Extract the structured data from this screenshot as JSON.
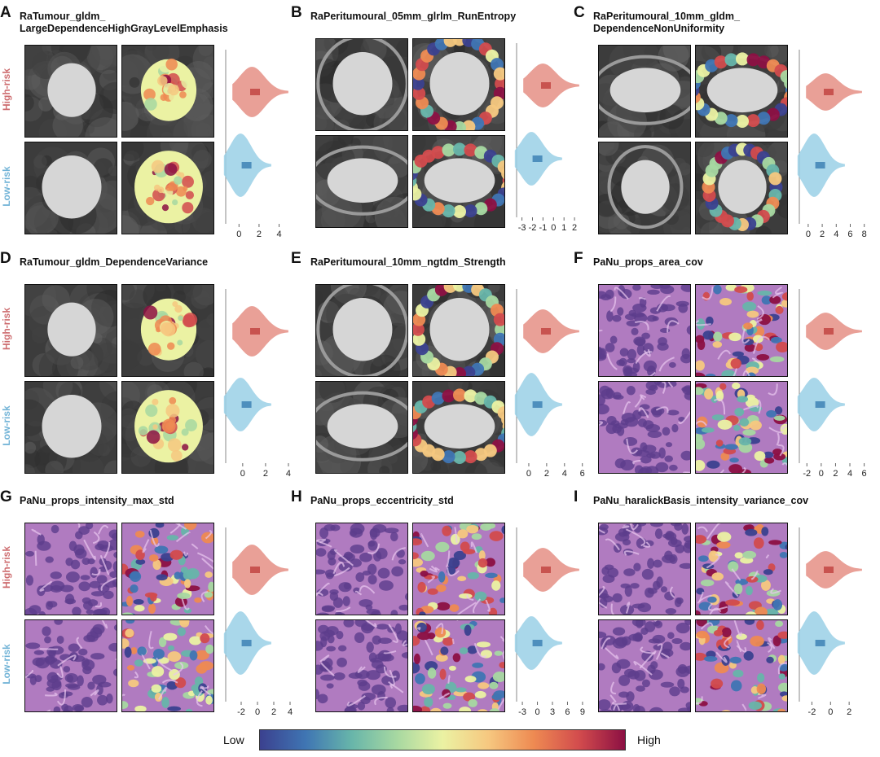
{
  "colors": {
    "high_risk": "#cd6b6e",
    "low_risk": "#6fb2d6",
    "violin_high": "#e58f85",
    "violin_low": "#9ad0e6"
  },
  "labels": {
    "high_risk": "High-risk",
    "low_risk": "Low-risk"
  },
  "colorbar": {
    "low": "Low",
    "high": "High"
  },
  "panels": [
    {
      "letter": "A",
      "title": "RaTumour_gldm_\nLargeDependenceHighGrayLevelEmphasis",
      "modality": "ct",
      "show_row_labels": true,
      "xticks": [
        "0",
        "2",
        "4"
      ],
      "xlim": [
        -1,
        5.5
      ]
    },
    {
      "letter": "B",
      "title": "RaPeritumoural_05mm_glrlm_RunEntropy",
      "modality": "ct",
      "show_row_labels": false,
      "xticks": [
        "-3",
        "-2",
        "-1",
        "0",
        "1",
        "2"
      ],
      "xlim": [
        -3.2,
        3
      ]
    },
    {
      "letter": "C",
      "title": "RaPeritumoural_10mm_gldm_\nDependenceNonUniformity",
      "modality": "ct",
      "show_row_labels": false,
      "xticks": [
        "0",
        "2",
        "4",
        "6",
        "8"
      ],
      "xlim": [
        -0.8,
        8.5
      ]
    },
    {
      "letter": "D",
      "title": "RaTumour_gldm_DependenceVariance",
      "modality": "ct",
      "show_row_labels": true,
      "xticks": [
        "0",
        "2",
        "4"
      ],
      "xlim": [
        -1.2,
        4.5
      ]
    },
    {
      "letter": "E",
      "title": "RaPeritumoural_10mm_ngtdm_Strength",
      "modality": "ct",
      "show_row_labels": false,
      "xticks": [
        "0",
        "2",
        "4",
        "6"
      ],
      "xlim": [
        -1,
        6.3
      ]
    },
    {
      "letter": "F",
      "title": "PaNu_props_area_cov",
      "modality": "he",
      "show_row_labels": false,
      "xticks": [
        "-2",
        "0",
        "2",
        "4",
        "6"
      ],
      "xlim": [
        -2.6,
        6.5
      ]
    },
    {
      "letter": "G",
      "title": "PaNu_props_intensity_max_std",
      "modality": "he",
      "show_row_labels": true,
      "xticks": [
        "-2",
        "0",
        "2",
        "4"
      ],
      "xlim": [
        -3.5,
        4.5
      ]
    },
    {
      "letter": "H",
      "title": "PaNu_props_eccentricity_std",
      "modality": "he",
      "show_row_labels": false,
      "xticks": [
        "-3",
        "0",
        "3",
        "6",
        "9"
      ],
      "xlim": [
        -3.5,
        9.5
      ]
    },
    {
      "letter": "I",
      "title": "PaNu_haralickBasis_intensity_variance_cov",
      "modality": "he",
      "show_row_labels": false,
      "xticks": [
        "-2",
        "0",
        "2"
      ],
      "xlim": [
        -3,
        4
      ]
    }
  ]
}
